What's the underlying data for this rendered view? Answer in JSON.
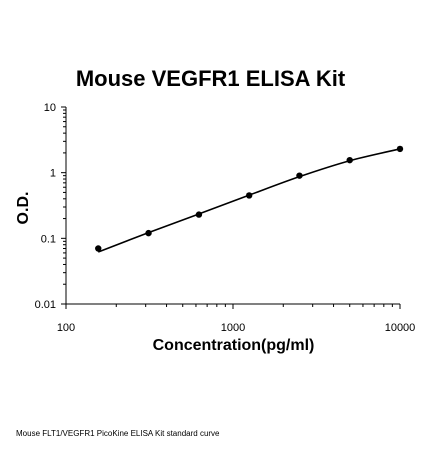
{
  "chart_data": {
    "type": "line",
    "title": "Mouse VEGFR1 ELISA Kit",
    "xlabel": "Concentration(pg/ml)",
    "ylabel": "O.D.",
    "x_scale": "log",
    "y_scale": "log",
    "xlim": [
      100,
      10000
    ],
    "ylim": [
      0.01,
      10
    ],
    "x_ticks": [
      "100",
      "1000",
      "10000"
    ],
    "y_ticks": [
      "10",
      "1",
      "0.1",
      "0.01"
    ],
    "grid": false,
    "legend": "none",
    "series": [
      {
        "points": [
          {
            "x": 156,
            "y": 0.07
          },
          {
            "x": 312,
            "y": 0.12
          },
          {
            "x": 625,
            "y": 0.23
          },
          {
            "x": 1250,
            "y": 0.45
          },
          {
            "x": 2500,
            "y": 0.9
          },
          {
            "x": 5000,
            "y": 1.55
          },
          {
            "x": 10000,
            "y": 2.3
          }
        ],
        "fit": [
          {
            "x": 156,
            "y": 0.062
          },
          {
            "x": 312,
            "y": 0.122
          },
          {
            "x": 625,
            "y": 0.235
          },
          {
            "x": 1250,
            "y": 0.455
          },
          {
            "x": 2500,
            "y": 0.87
          },
          {
            "x": 5000,
            "y": 1.52
          },
          {
            "x": 10000,
            "y": 2.3
          }
        ]
      }
    ]
  },
  "caption": "Mouse FLT1/VEGFR1 PicoKine ELISA Kit standard curve",
  "colors": {
    "line": "#000000",
    "marker": "#000000",
    "axis": "#000000"
  }
}
